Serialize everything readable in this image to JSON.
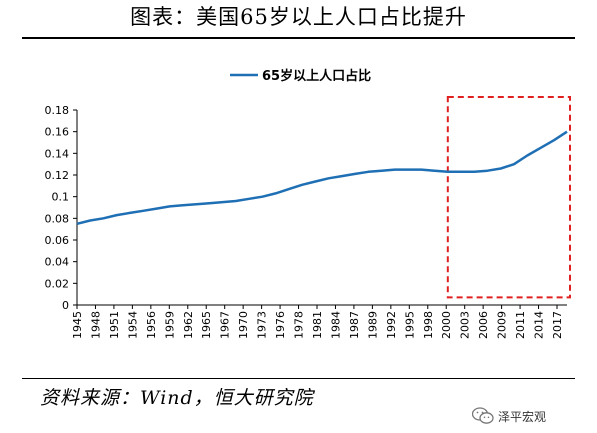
{
  "header": {
    "title": "图表：美国65岁以上人口占比提升"
  },
  "footer": {
    "source": "资料来源：Wind，恒大研究院",
    "wechat_label": "泽平宏观",
    "wechat_icon": "wechat-icon"
  },
  "chart_data": {
    "type": "line",
    "legend_position": "top-center",
    "grid": false,
    "xlim": [
      1945,
      2019
    ],
    "ylim": [
      0,
      0.18
    ],
    "yticks": [
      "0",
      "0.02",
      "0.04",
      "0.06",
      "0.08",
      "0.1",
      "0.12",
      "0.14",
      "0.16",
      "0.18"
    ],
    "xticks": [
      "1945",
      "1948",
      "1951",
      "1954",
      "1956",
      "1959",
      "1962",
      "1965",
      "1967",
      "1970",
      "1973",
      "1976",
      "1978",
      "1981",
      "1984",
      "1987",
      "1989",
      "1992",
      "1995",
      "1998",
      "2000",
      "2003",
      "2006",
      "2009",
      "2011",
      "2014",
      "2017"
    ],
    "series": [
      {
        "name": "65岁以上人口占比",
        "color": "#1f6fb5",
        "x": [
          1945,
          1947,
          1949,
          1951,
          1953,
          1955,
          1957,
          1959,
          1961,
          1963,
          1965,
          1967,
          1969,
          1971,
          1973,
          1975,
          1977,
          1979,
          1981,
          1983,
          1985,
          1987,
          1989,
          1991,
          1993,
          1995,
          1997,
          1999,
          2001,
          2003,
          2005,
          2007,
          2009,
          2011,
          2013,
          2015,
          2017,
          2019
        ],
        "y": [
          0.075,
          0.078,
          0.08,
          0.083,
          0.085,
          0.087,
          0.089,
          0.091,
          0.092,
          0.093,
          0.094,
          0.095,
          0.096,
          0.098,
          0.1,
          0.103,
          0.107,
          0.111,
          0.114,
          0.117,
          0.119,
          0.121,
          0.123,
          0.124,
          0.125,
          0.125,
          0.125,
          0.124,
          0.123,
          0.123,
          0.123,
          0.124,
          0.126,
          0.13,
          0.138,
          0.145,
          0.152,
          0.16
        ]
      }
    ],
    "highlight_box": {
      "x_range": [
        2001,
        2020
      ],
      "y_range": [
        0.007,
        0.192
      ],
      "color": "#e02020",
      "style": "dashed"
    }
  }
}
